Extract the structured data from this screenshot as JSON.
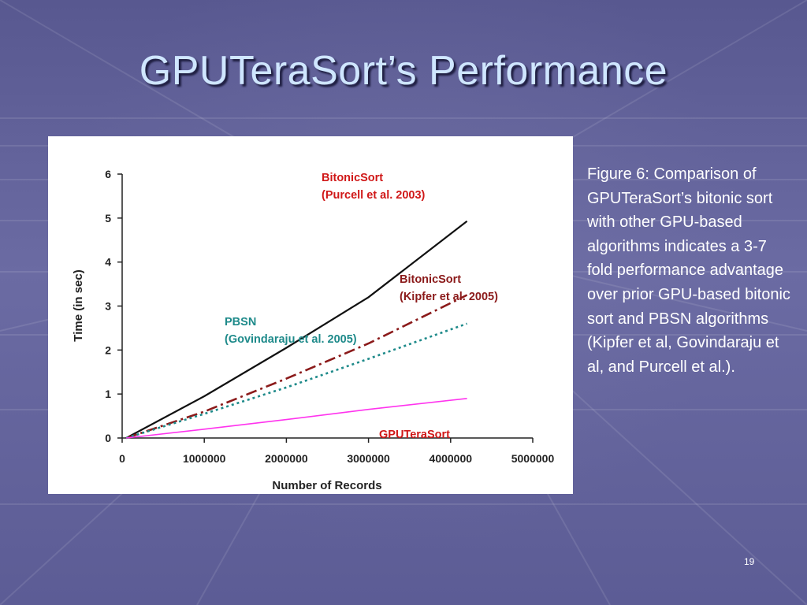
{
  "slide": {
    "title": "GPUTeraSort’s Performance",
    "caption": "Figure 6: Comparison of GPUTeraSort’s bitonic sort with other GPU-based algorithms indicates a 3-7 fold performance advantage over prior GPU-based bitonic sort and PBSN algorithms (Kipfer et al, Govindaraju et al, and Purcell et al.).",
    "page_number": "19"
  },
  "chart_data": {
    "type": "line",
    "title": "",
    "xlabel": "Number of Records",
    "ylabel": "Time (in sec)",
    "xlim": [
      0,
      5000000
    ],
    "ylim": [
      0,
      6
    ],
    "x_ticks": [
      0,
      1000000,
      2000000,
      3000000,
      4000000,
      5000000
    ],
    "x_tick_labels": [
      "0",
      "1000000",
      "2000000",
      "3000000",
      "4000000",
      "5000000"
    ],
    "y_ticks": [
      0,
      1,
      2,
      3,
      4,
      5,
      6
    ],
    "y_tick_labels": [
      "0",
      "1",
      "2",
      "3",
      "4",
      "5",
      "6"
    ],
    "grid": false,
    "series": [
      {
        "label_lines": [
          "BitonicSort",
          "(Purcell et al. 2003)"
        ],
        "color": "#111111",
        "dash": "solid",
        "label_color": "#d01818",
        "points": [
          [
            50000,
            0.0
          ],
          [
            1000000,
            0.95
          ],
          [
            2000000,
            2.05
          ],
          [
            3000000,
            3.2
          ],
          [
            4200000,
            4.93
          ]
        ]
      },
      {
        "label_lines": [
          "BitonicSort",
          "(Kipfer et al. 2005)"
        ],
        "color": "#8b1a1a",
        "dash": "dashdot",
        "label_color": "#8b1a1a",
        "points": [
          [
            50000,
            0.0
          ],
          [
            1000000,
            0.6
          ],
          [
            2000000,
            1.35
          ],
          [
            3000000,
            2.15
          ],
          [
            4200000,
            3.25
          ]
        ]
      },
      {
        "label_lines": [
          "PBSN",
          "(Govindaraju et al. 2005)"
        ],
        "color": "#1e8a8a",
        "dash": "dotted",
        "label_color": "#1e8a8a",
        "points": [
          [
            50000,
            0.0
          ],
          [
            1000000,
            0.55
          ],
          [
            2000000,
            1.15
          ],
          [
            3000000,
            1.8
          ],
          [
            4200000,
            2.6
          ]
        ]
      },
      {
        "label_lines": [
          "GPUTeraSort"
        ],
        "color": "#ff33ee",
        "dash": "solid",
        "label_color": "#d01818",
        "points": [
          [
            50000,
            0.0
          ],
          [
            1000000,
            0.2
          ],
          [
            2000000,
            0.42
          ],
          [
            3000000,
            0.65
          ],
          [
            4200000,
            0.9
          ]
        ]
      }
    ]
  }
}
